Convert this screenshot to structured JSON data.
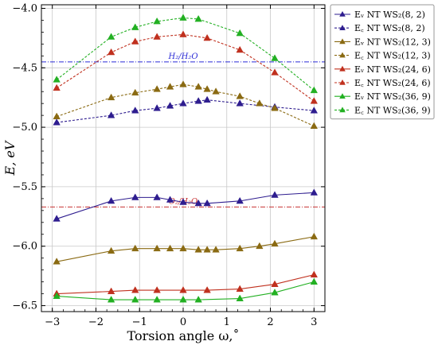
{
  "chart_data": {
    "type": "line",
    "xlabel": "Torsion angle ω,˚",
    "ylabel": "E, eV",
    "xlim": [
      -3.25,
      3.25
    ],
    "ylim": [
      -6.55,
      -3.97
    ],
    "xticks": [
      -3,
      -2,
      -1,
      0,
      1,
      2,
      3
    ],
    "yticks": [
      -6.5,
      -6.0,
      -5.5,
      -5.0,
      -4.5,
      -4.0
    ],
    "xtick_labels": [
      "−3",
      "−2",
      "−1",
      "0",
      "1",
      "2",
      "3"
    ],
    "ytick_labels": [
      "−6.5",
      "−6.0",
      "−5.5",
      "−5.0",
      "−4.5",
      "−4.0"
    ],
    "grid": true,
    "legend_position": "outside-right",
    "reference_lines": [
      {
        "y": -4.45,
        "label": "H₂/H₂O",
        "color": "#2a2ad6"
      },
      {
        "y": -5.67,
        "label": "O₂/H₂O",
        "color": "#c83232"
      }
    ],
    "series": [
      {
        "name": "Eᵥ NT WS₂(8, 2)",
        "style": "solid",
        "color": "#2e1d8f",
        "points": [
          [
            -2.9,
            -5.77
          ],
          [
            -1.65,
            -5.62
          ],
          [
            -1.1,
            -5.59
          ],
          [
            -0.6,
            -5.59
          ],
          [
            -0.3,
            -5.61
          ],
          [
            0,
            -5.63
          ],
          [
            0.35,
            -5.64
          ],
          [
            0.55,
            -5.64
          ],
          [
            1.3,
            -5.62
          ],
          [
            2.1,
            -5.57
          ],
          [
            3,
            -5.55
          ]
        ]
      },
      {
        "name": "E꜀ NT WS₂(8, 2)",
        "style": "dashed",
        "color": "#2e1d8f",
        "points": [
          [
            -2.9,
            -4.96
          ],
          [
            -1.65,
            -4.9
          ],
          [
            -1.1,
            -4.86
          ],
          [
            -0.6,
            -4.84
          ],
          [
            -0.3,
            -4.82
          ],
          [
            0,
            -4.8
          ],
          [
            0.35,
            -4.78
          ],
          [
            0.55,
            -4.77
          ],
          [
            1.3,
            -4.8
          ],
          [
            2.1,
            -4.83
          ],
          [
            3,
            -4.86
          ]
        ]
      },
      {
        "name": "Eᵥ NT WS₂(12, 3)",
        "style": "solid",
        "color": "#8a6a12",
        "points": [
          [
            -2.9,
            -6.13
          ],
          [
            -1.65,
            -6.04
          ],
          [
            -1.1,
            -6.02
          ],
          [
            -0.6,
            -6.02
          ],
          [
            -0.3,
            -6.02
          ],
          [
            0,
            -6.02
          ],
          [
            0.35,
            -6.03
          ],
          [
            0.55,
            -6.03
          ],
          [
            0.75,
            -6.03
          ],
          [
            1.3,
            -6.02
          ],
          [
            1.75,
            -6.0
          ],
          [
            2.1,
            -5.98
          ],
          [
            3,
            -5.92
          ]
        ]
      },
      {
        "name": "E꜀ NT WS₂(12, 3)",
        "style": "dashed",
        "color": "#8a6a12",
        "points": [
          [
            -2.9,
            -4.91
          ],
          [
            -1.65,
            -4.75
          ],
          [
            -1.1,
            -4.71
          ],
          [
            -0.6,
            -4.68
          ],
          [
            -0.3,
            -4.66
          ],
          [
            0,
            -4.64
          ],
          [
            0.35,
            -4.66
          ],
          [
            0.55,
            -4.68
          ],
          [
            0.75,
            -4.7
          ],
          [
            1.3,
            -4.74
          ],
          [
            1.75,
            -4.8
          ],
          [
            2.1,
            -4.84
          ],
          [
            3,
            -4.99
          ]
        ]
      },
      {
        "name": "Eᵥ NT WS₂(24, 6)",
        "style": "solid",
        "color": "#c0301e",
        "points": [
          [
            -2.9,
            -6.4
          ],
          [
            -1.65,
            -6.38
          ],
          [
            -1.1,
            -6.37
          ],
          [
            -0.6,
            -6.37
          ],
          [
            0,
            -6.37
          ],
          [
            0.55,
            -6.37
          ],
          [
            1.3,
            -6.36
          ],
          [
            2.1,
            -6.32
          ],
          [
            3,
            -6.24
          ]
        ]
      },
      {
        "name": "E꜀ NT WS₂(24, 6)",
        "style": "dashed",
        "color": "#c0301e",
        "points": [
          [
            -2.9,
            -4.67
          ],
          [
            -1.65,
            -4.37
          ],
          [
            -1.1,
            -4.28
          ],
          [
            -0.6,
            -4.24
          ],
          [
            0,
            -4.22
          ],
          [
            0.55,
            -4.25
          ],
          [
            1.3,
            -4.35
          ],
          [
            2.1,
            -4.54
          ],
          [
            3,
            -4.78
          ]
        ]
      },
      {
        "name": "Eᵥ NT WS₂(36, 9)",
        "style": "solid",
        "color": "#22b022",
        "points": [
          [
            -2.9,
            -6.42
          ],
          [
            -1.65,
            -6.45
          ],
          [
            -1.1,
            -6.45
          ],
          [
            -0.6,
            -6.45
          ],
          [
            0,
            -6.45
          ],
          [
            0.35,
            -6.45
          ],
          [
            1.3,
            -6.44
          ],
          [
            2.1,
            -6.39
          ],
          [
            3,
            -6.3
          ]
        ]
      },
      {
        "name": "E꜀ NT WS₂(36, 9)",
        "style": "dashed",
        "color": "#22b022",
        "points": [
          [
            -2.9,
            -4.6
          ],
          [
            -1.65,
            -4.24
          ],
          [
            -1.1,
            -4.16
          ],
          [
            -0.6,
            -4.11
          ],
          [
            0,
            -4.08
          ],
          [
            0.35,
            -4.09
          ],
          [
            1.3,
            -4.21
          ],
          [
            2.1,
            -4.42
          ],
          [
            3,
            -4.69
          ]
        ]
      }
    ]
  }
}
